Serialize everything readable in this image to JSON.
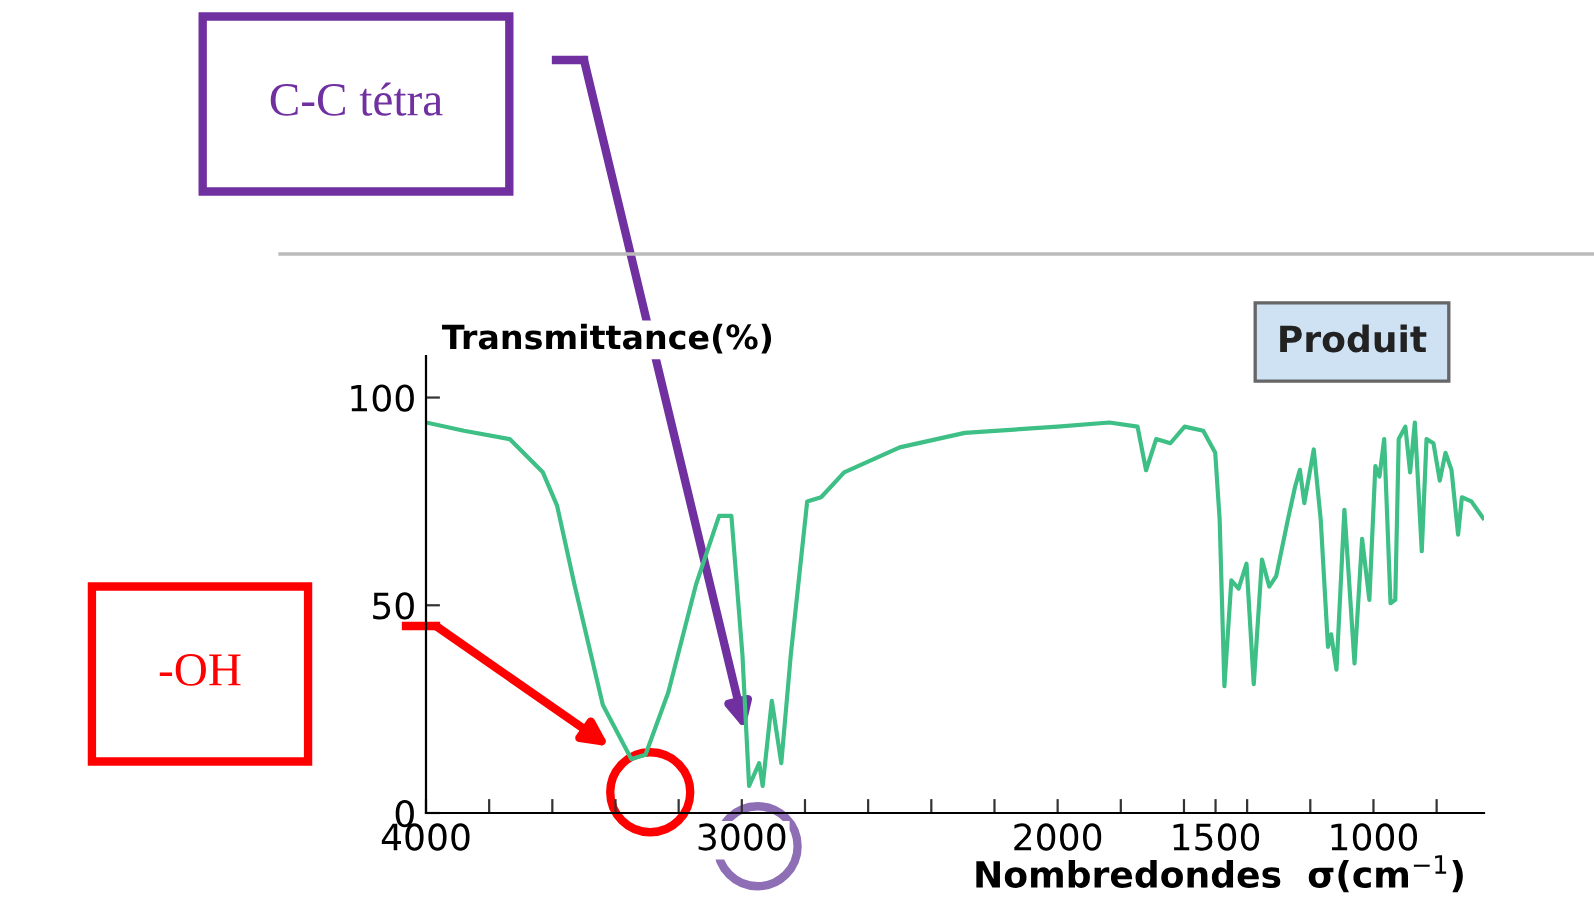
{
  "chart_data": {
    "type": "line",
    "xlabel": "Nombredondes  σ(cm$^{−1}$)",
    "ylabel": "Transmittance(%)",
    "annotations": [
      "Produit",
      "-OH",
      "C-C tétra"
    ],
    "series": [
      {
        "color": "#3dbf86",
        "x": [
          4000,
          3880,
          3735,
          3630,
          3585,
          3530,
          3440,
          3350,
          3305,
          3233,
          3145,
          3072,
          3033,
          2998,
          2977,
          2945,
          2934,
          2905,
          2875,
          2845,
          2793,
          2749,
          2676,
          2500,
          2294,
          2000,
          1836,
          1747,
          1720,
          1688,
          1643,
          1598,
          1539,
          1501,
          1487,
          1472,
          1450,
          1427,
          1402,
          1379,
          1353,
          1330,
          1308,
          1271,
          1248,
          1233,
          1219,
          1189,
          1167,
          1144,
          1134,
          1117,
          1092,
          1060,
          1036,
          1013,
          994,
          981,
          966,
          946,
          931,
          920,
          899,
          884,
          869,
          847,
          832,
          810,
          790,
          772,
          753,
          732,
          720,
          690,
          653
        ],
        "values": [
          94,
          92,
          90,
          82,
          74,
          55,
          26,
          13,
          14,
          29,
          55,
          71.5,
          71.5,
          38,
          6.5,
          12,
          6.5,
          27,
          12,
          38,
          75,
          76,
          82,
          88,
          91.5,
          93,
          94,
          93,
          82.5,
          90,
          89,
          93,
          92,
          86.7,
          70.6,
          30.5,
          56,
          54,
          60,
          31,
          61,
          54.5,
          57,
          70.6,
          78.6,
          82.6,
          74.6,
          87.5,
          70.6,
          40,
          43,
          34.5,
          73,
          36,
          66,
          51.3,
          83.5,
          81,
          90,
          50.5,
          51.3,
          90,
          93,
          82,
          94,
          63,
          90,
          89,
          80,
          86.7,
          82.6,
          67,
          76,
          75,
          71
        ]
      }
    ],
    "xlim": [
      4000,
      650
    ],
    "xticks": [
      4000,
      {
        "value": 3800,
        "label": null
      },
      {
        "value": 3600,
        "label": null
      },
      {
        "value": 3400,
        "label": null
      },
      {
        "value": 3200,
        "label": null
      },
      3000,
      {
        "value": 2800,
        "label": null
      },
      {
        "value": 2600,
        "label": null
      },
      {
        "value": 2400,
        "label": null
      },
      {
        "value": 2200,
        "label": null
      },
      2000,
      {
        "value": 1800,
        "label": null
      },
      {
        "value": 1600,
        "label": null
      },
      1500,
      {
        "value": 1400,
        "label": null
      },
      {
        "value": 1200,
        "label": null
      },
      1000,
      {
        "value": 800,
        "label": null
      }
    ],
    "ylim": [
      0,
      110
    ],
    "yticks": [
      0,
      50,
      100
    ],
    "grid": false,
    "marker": "none",
    "line_style": "solid"
  }
}
